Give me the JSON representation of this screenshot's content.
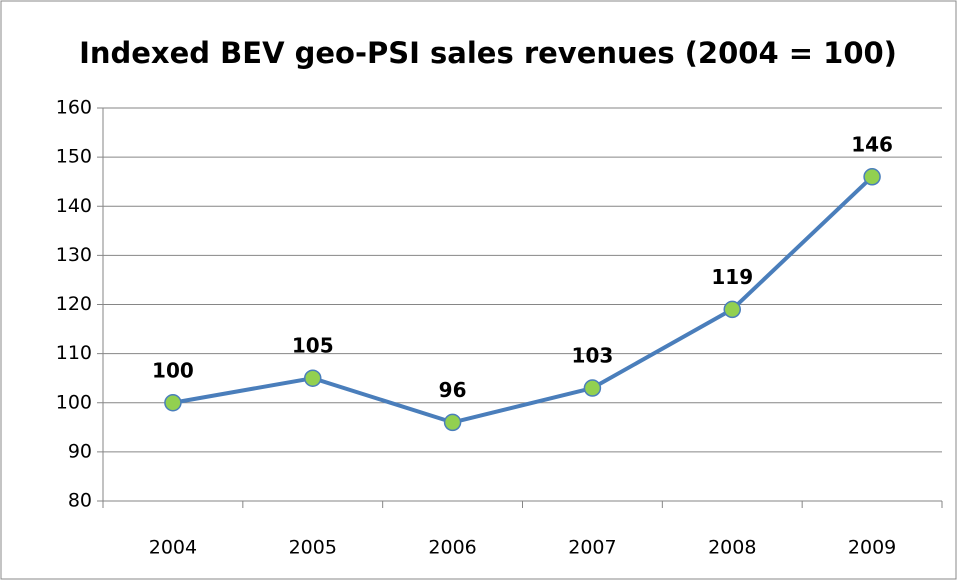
{
  "chart_data": {
    "type": "line",
    "title": "Indexed BEV geo-PSI sales revenues (2004 = 100)",
    "categories": [
      "2004",
      "2005",
      "2006",
      "2007",
      "2008",
      "2009"
    ],
    "values": [
      100,
      105,
      96,
      103,
      119,
      146
    ],
    "color": "#4a7ebb",
    "marker_color": "#92d050",
    "ylim": [
      80,
      160
    ],
    "yticks": [
      80,
      90,
      100,
      110,
      120,
      130,
      140,
      150,
      160
    ],
    "grid": true
  }
}
